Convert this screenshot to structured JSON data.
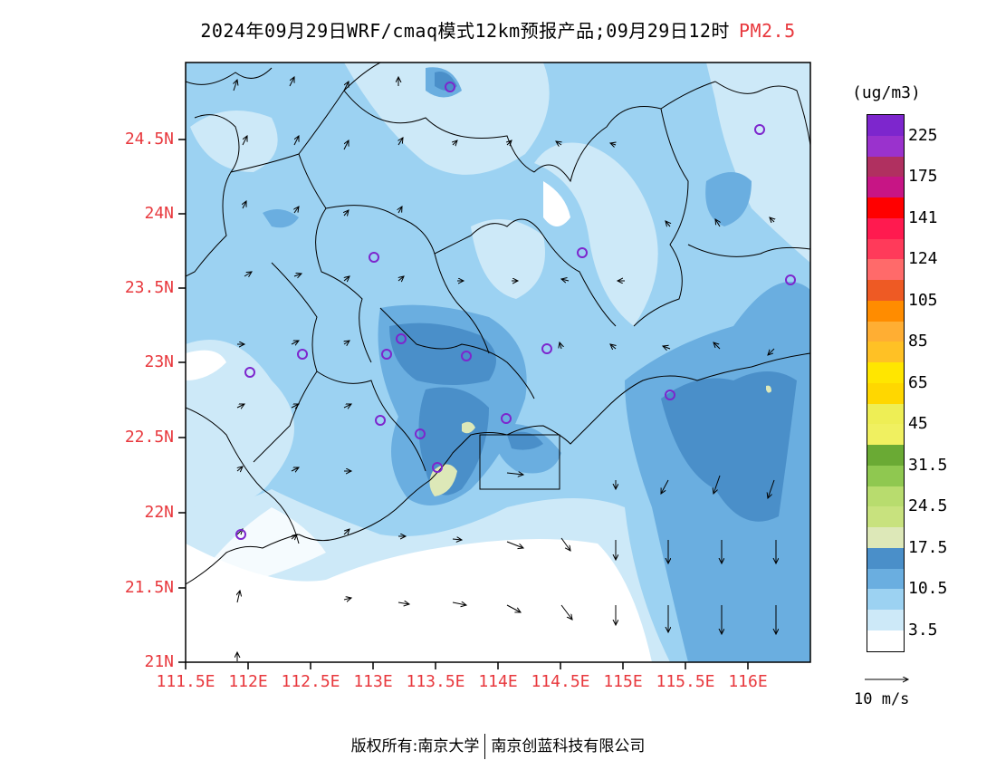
{
  "title": {
    "main": "2024年09月29日WRF/cmaq模式12km预报产品;09月29日12时",
    "species": "PM2.5"
  },
  "map": {
    "lon_range": [
      111.5,
      116.5
    ],
    "lat_range": [
      21,
      25
    ],
    "lat_labels": [
      "24.5N",
      "24N",
      "23.5N",
      "23N",
      "22.5N",
      "22N",
      "21.5N",
      "21N"
    ],
    "lon_labels": [
      "111.5E",
      "112E",
      "112.5E",
      "113E",
      "113.5E",
      "114E",
      "114.5E",
      "115E",
      "115.5E",
      "116E"
    ]
  },
  "legend": {
    "unit": "(ug/m3)",
    "colors": [
      "#7d26cd",
      "#9a32cd",
      "#b03060",
      "#c71585",
      "#ff0000",
      "#ff1a4f",
      "#ff3a5a",
      "#ff6a6a",
      "#ee5a24",
      "#ff8c00",
      "#ffae33",
      "#ffc125",
      "#ffe600",
      "#ffd700",
      "#eeee55",
      "#f0f060",
      "#6aaa34",
      "#8fc850",
      "#b8dc6e",
      "#c8e27e",
      "#dde8b8",
      "#4a8fc9",
      "#6aaee0",
      "#9cd2f2",
      "#cde9f8",
      "#ffffff"
    ],
    "labels": [
      "225",
      "175",
      "141",
      "124",
      "105",
      "85",
      "65",
      "45",
      "31.5",
      "24.5",
      "17.5",
      "10.5",
      "3.5"
    ]
  },
  "wind_reference": "10 m/s",
  "footer": {
    "left": "版权所有:南京大学",
    "right": "南京创蓝科技有限公司"
  },
  "colors": {
    "label_red": "#e8383d",
    "station_marker": "#7d26cd"
  }
}
